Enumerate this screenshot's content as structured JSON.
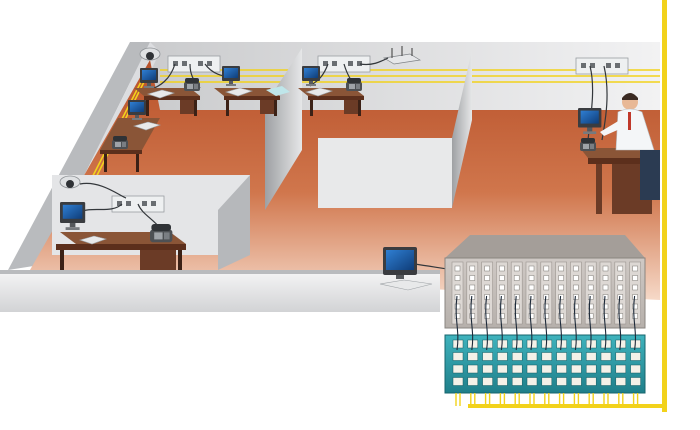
{
  "diagram": {
    "title": "",
    "description_visible_text": [],
    "colors": {
      "floor": "#c8643a",
      "floor_light": "#e7a07e",
      "wall": "#d9dadc",
      "wall_dark": "#a9abad",
      "desk": "#6b3b26",
      "cable_yellow": "#f2d21b",
      "panel_teal": "#2a9aa5",
      "panel_grey": "#c9c4c0",
      "accent_blue": "#1a5fa8"
    },
    "workstations": [
      {
        "name": "workstation-1",
        "items": [
          "monitor-icon",
          "keyboard-icon",
          "phone-icon"
        ]
      },
      {
        "name": "workstation-2",
        "items": [
          "monitor-icon",
          "keyboard-icon",
          "phone-icon"
        ]
      },
      {
        "name": "workstation-3",
        "items": [
          "monitor-icon",
          "keyboard-icon",
          "phone-icon"
        ]
      },
      {
        "name": "workstation-4",
        "items": [
          "monitor-icon",
          "keyboard-icon",
          "phone-icon"
        ]
      },
      {
        "name": "workstation-5",
        "items": [
          "monitor-icon",
          "keyboard-icon",
          "phone-icon"
        ]
      },
      {
        "name": "workstation-6",
        "items": [
          "monitor-icon",
          "keyboard-icon",
          "phone-icon",
          "person-icon"
        ]
      }
    ],
    "devices": [
      "security-camera-icon",
      "wireless-router-icon",
      "wall-outlet-icon",
      "patch-panel-icon",
      "network-switch-icon"
    ]
  }
}
